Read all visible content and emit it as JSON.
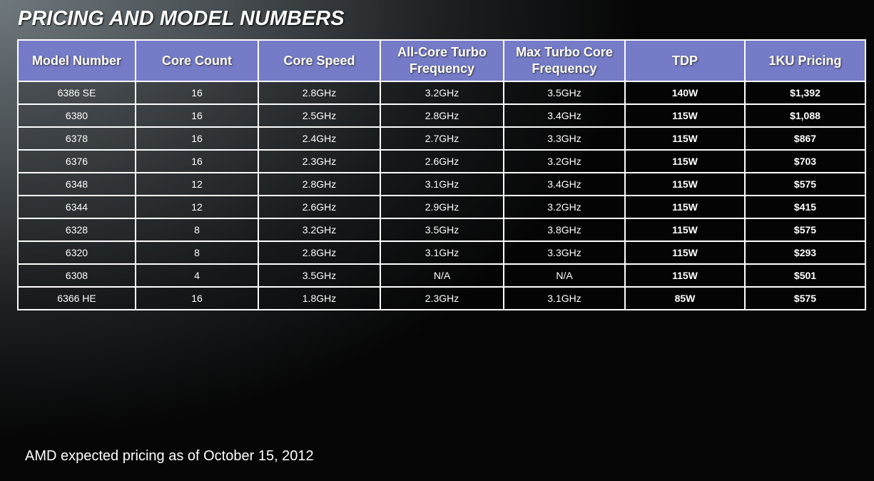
{
  "title": "PRICING AND MODEL NUMBERS",
  "table": {
    "headers": [
      "Model Number",
      "Core Count",
      "Core Speed",
      "All-Core Turbo Frequency",
      "Max Turbo Core Frequency",
      "TDP",
      "1KU Pricing"
    ],
    "rows": [
      [
        "6386 SE",
        "16",
        "2.8GHz",
        "3.2GHz",
        "3.5GHz",
        "140W",
        "$1,392"
      ],
      [
        "6380",
        "16",
        "2.5GHz",
        "2.8GHz",
        "3.4GHz",
        "115W",
        "$1,088"
      ],
      [
        "6378",
        "16",
        "2.4GHz",
        "2.7GHz",
        "3.3GHz",
        "115W",
        "$867"
      ],
      [
        "6376",
        "16",
        "2.3GHz",
        "2.6GHz",
        "3.2GHz",
        "115W",
        "$703"
      ],
      [
        "6348",
        "12",
        "2.8GHz",
        "3.1GHz",
        "3.4GHz",
        "115W",
        "$575"
      ],
      [
        "6344",
        "12",
        "2.6GHz",
        "2.9GHz",
        "3.2GHz",
        "115W",
        "$415"
      ],
      [
        "6328",
        "8",
        "3.2GHz",
        "3.5GHz",
        "3.8GHz",
        "115W",
        "$575"
      ],
      [
        "6320",
        "8",
        "2.8GHz",
        "3.1GHz",
        "3.3GHz",
        "115W",
        "$293"
      ],
      [
        "6308",
        "4",
        "3.5GHz",
        "N/A",
        "N/A",
        "115W",
        "$501"
      ],
      [
        "6366 HE",
        "16",
        "1.8GHz",
        "2.3GHz",
        "3.1GHz",
        "85W",
        "$575"
      ]
    ]
  },
  "footnote": "AMD expected pricing as of October 15, 2012",
  "colors": {
    "header_bg": "#757bc6",
    "text": "#ffffff"
  }
}
